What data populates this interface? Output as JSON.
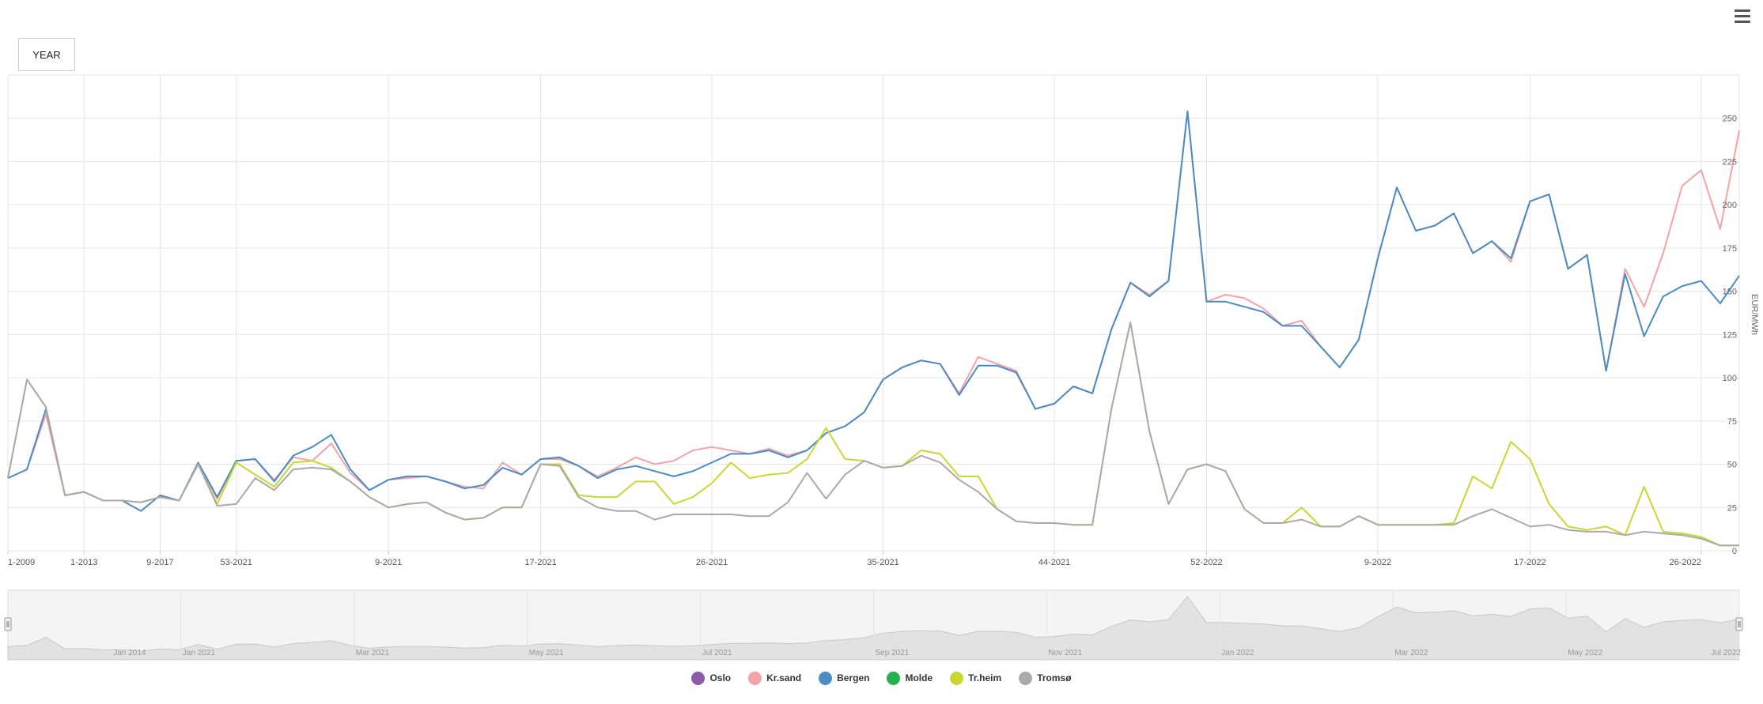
{
  "toolbar": {
    "range_button": "YEAR",
    "menu_icon": "hamburger-menu-icon"
  },
  "chart_data": {
    "type": "line",
    "ylabel": "EUR/MWh",
    "ylim": [
      0,
      275
    ],
    "yticks": [
      0,
      25,
      50,
      75,
      100,
      125,
      150,
      175,
      200,
      225,
      250
    ],
    "x_tick_labels": [
      {
        "label": "1-2009",
        "index": 0
      },
      {
        "label": "1-2013",
        "index": 4
      },
      {
        "label": "9-2017",
        "index": 8
      },
      {
        "label": "53-2021",
        "index": 12
      },
      {
        "label": "9-2021",
        "index": 20
      },
      {
        "label": "17-2021",
        "index": 28
      },
      {
        "label": "26-2021",
        "index": 37
      },
      {
        "label": "35-2021",
        "index": 46
      },
      {
        "label": "44-2021",
        "index": 55
      },
      {
        "label": "52-2022",
        "index": 63
      },
      {
        "label": "9-2022",
        "index": 72
      },
      {
        "label": "17-2022",
        "index": 80
      },
      {
        "label": "26-2022",
        "index": 89
      }
    ],
    "series": [
      {
        "name": "Oslo",
        "color": "#8E5BA8",
        "visible": false,
        "values": []
      },
      {
        "name": "Kr.sand",
        "color": "#F4A3A8",
        "visible": true,
        "values": [
          42,
          47,
          79,
          32,
          34,
          29,
          29,
          28,
          31,
          29,
          50,
          30,
          52,
          53,
          41,
          54,
          52,
          62,
          45,
          35,
          41,
          42,
          43,
          40,
          37,
          36,
          51,
          44,
          53,
          53,
          49,
          43,
          48,
          54,
          50,
          52,
          58,
          60,
          58,
          56,
          59,
          55,
          58,
          68,
          72,
          80,
          99,
          106,
          110,
          108,
          91,
          112,
          108,
          104,
          82,
          85,
          95,
          91,
          128,
          155,
          148,
          156,
          254,
          144,
          148,
          146,
          140,
          130,
          133,
          118,
          106,
          122,
          169,
          210,
          185,
          188,
          195,
          172,
          179,
          167,
          202,
          206,
          163,
          171,
          104,
          163,
          141,
          172,
          211,
          220,
          186,
          243
        ]
      },
      {
        "name": "Bergen",
        "color": "#4A8CC4",
        "visible": true,
        "values": [
          42,
          47,
          82,
          32,
          34,
          29,
          29,
          23,
          32,
          29,
          51,
          31,
          52,
          53,
          40,
          55,
          60,
          67,
          47,
          35,
          41,
          43,
          43,
          40,
          36,
          38,
          48,
          44,
          53,
          54,
          49,
          42,
          47,
          49,
          46,
          43,
          46,
          51,
          56,
          56,
          58,
          54,
          58,
          68,
          72,
          80,
          99,
          106,
          110,
          108,
          90,
          107,
          107,
          103,
          82,
          85,
          95,
          91,
          128,
          155,
          147,
          156,
          254,
          144,
          144,
          141,
          138,
          130,
          130,
          118,
          106,
          122,
          169,
          210,
          185,
          188,
          195,
          172,
          179,
          169,
          202,
          206,
          163,
          171,
          104,
          160,
          124,
          147,
          153,
          156,
          143,
          159
        ]
      },
      {
        "name": "Molde",
        "color": "#22B14C",
        "visible": false,
        "values": []
      },
      {
        "name": "Tr.heim",
        "color": "#C9D82F",
        "visible": true,
        "values": [
          42,
          99,
          83,
          32,
          34,
          29,
          29,
          28,
          31,
          29,
          50,
          27,
          51,
          44,
          37,
          51,
          52,
          48,
          40,
          31,
          25,
          27,
          28,
          22,
          18,
          19,
          25,
          25,
          50,
          50,
          32,
          31,
          31,
          40,
          40,
          27,
          31,
          39,
          51,
          42,
          44,
          45,
          53,
          71,
          53,
          52,
          48,
          49,
          58,
          56,
          43,
          43,
          24,
          17,
          16,
          16,
          15,
          15,
          82,
          132,
          69,
          27,
          47,
          50,
          46,
          24,
          16,
          16,
          25,
          14,
          14,
          20,
          15,
          15,
          15,
          15,
          16,
          43,
          36,
          63,
          53,
          27,
          14,
          12,
          14,
          9,
          37,
          11,
          10,
          8,
          3,
          3
        ]
      },
      {
        "name": "Tromsø",
        "color": "#AAAAAA",
        "visible": true,
        "values": [
          42,
          99,
          83,
          32,
          34,
          29,
          29,
          28,
          31,
          29,
          50,
          26,
          27,
          42,
          35,
          47,
          48,
          47,
          40,
          31,
          25,
          27,
          28,
          22,
          18,
          19,
          25,
          25,
          50,
          49,
          31,
          25,
          23,
          23,
          18,
          21,
          21,
          21,
          21,
          20,
          20,
          28,
          45,
          30,
          44,
          52,
          48,
          49,
          55,
          51,
          41,
          34,
          24,
          17,
          16,
          16,
          15,
          15,
          82,
          132,
          69,
          27,
          47,
          50,
          46,
          24,
          16,
          16,
          18,
          14,
          14,
          20,
          15,
          15,
          15,
          15,
          15,
          20,
          24,
          19,
          14,
          15,
          12,
          11,
          11,
          9,
          11,
          10,
          9,
          7,
          3,
          3
        ]
      }
    ],
    "navigator": {
      "tick_labels": [
        "Jan 2014",
        "Jan 2021",
        "Mar 2021",
        "May 2021",
        "Jul 2021",
        "Sep 2021",
        "Nov 2021",
        "Jan 2022",
        "Mar 2022",
        "May 2022",
        "Jul 2022"
      ]
    },
    "legend": {
      "placement": "bottom-center"
    }
  }
}
